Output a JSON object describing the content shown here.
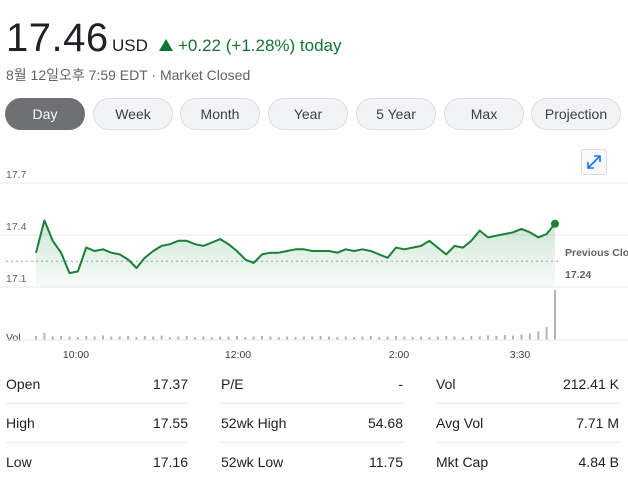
{
  "quote": {
    "price": "17.46",
    "currency": "USD",
    "change": "+0.22 (+1.28%) today",
    "timestamp": "8월 12일오후 7:59 EDT · Market Closed"
  },
  "ranges": [
    "Day",
    "Week",
    "Month",
    "Year",
    "5 Year",
    "Max",
    "Projection"
  ],
  "active_range": "Day",
  "icons": {
    "expand": "expand-icon",
    "arrow": "up-arrow-icon"
  },
  "colors": {
    "positive": "#137333",
    "line": "#1a7f37",
    "active_tab": "#6f7073"
  },
  "chart_data": {
    "type": "line",
    "y_ticks": [
      "17.7",
      "17.4",
      "17.1"
    ],
    "ylim": [
      17.1,
      17.7
    ],
    "x_ticks": [
      "10:00",
      "12:00",
      "2:00",
      "3:30"
    ],
    "previous_close_label": "Previous Close:",
    "previous_close_value": "17.24",
    "previous_close": 17.24,
    "volume_label": "Vol",
    "series": [
      {
        "values": [
          17.29,
          17.48,
          17.36,
          17.29,
          17.17,
          17.18,
          17.32,
          17.3,
          17.31,
          17.29,
          17.28,
          17.25,
          17.2,
          17.26,
          17.3,
          17.33,
          17.34,
          17.36,
          17.36,
          17.34,
          17.33,
          17.35,
          17.37,
          17.34,
          17.3,
          17.25,
          17.23,
          17.28,
          17.29,
          17.29,
          17.3,
          17.31,
          17.31,
          17.3,
          17.3,
          17.3,
          17.29,
          17.31,
          17.3,
          17.31,
          17.3,
          17.28,
          17.26,
          17.32,
          17.31,
          17.32,
          17.33,
          17.36,
          17.32,
          17.28,
          17.33,
          17.32,
          17.36,
          17.42,
          17.38,
          17.39,
          17.4,
          17.41,
          17.43,
          17.41,
          17.38,
          17.4,
          17.46
        ]
      }
    ],
    "volume": [
      8,
      14,
      7,
      8,
      7,
      6,
      8,
      7,
      9,
      7,
      7,
      8,
      6,
      8,
      7,
      9,
      6,
      7,
      8,
      6,
      7,
      6,
      7,
      7,
      8,
      6,
      7,
      8,
      7,
      6,
      7,
      6,
      7,
      7,
      8,
      7,
      6,
      7,
      6,
      7,
      8,
      6,
      7,
      8,
      7,
      6,
      7,
      6,
      7,
      8,
      7,
      6,
      8,
      7,
      9,
      8,
      10,
      9,
      11,
      13,
      17,
      26,
      100
    ]
  },
  "stats": [
    [
      {
        "label": "Open",
        "value": "17.37"
      },
      {
        "label": "High",
        "value": "17.55"
      },
      {
        "label": "Low",
        "value": "17.16"
      }
    ],
    [
      {
        "label": "P/E",
        "value": "-"
      },
      {
        "label": "52wk High",
        "value": "54.68"
      },
      {
        "label": "52wk Low",
        "value": "11.75"
      }
    ],
    [
      {
        "label": "Vol",
        "value": "212.41 K"
      },
      {
        "label": "Avg Vol",
        "value": "7.71 M"
      },
      {
        "label": "Mkt Cap",
        "value": "4.84 B"
      }
    ]
  ]
}
